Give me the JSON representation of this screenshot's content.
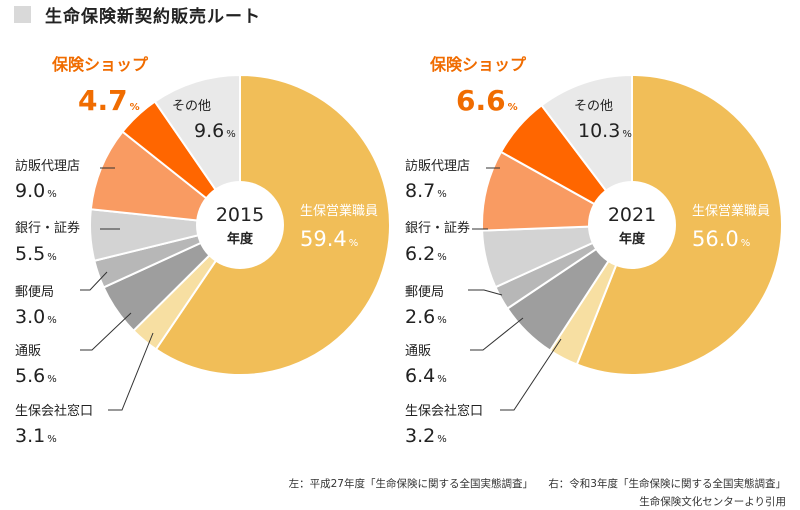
{
  "title": "生命保険新契約販売ルート",
  "colors": {
    "life_staff": "#f1be58",
    "counter": "#f7dfa2",
    "mail_order": "#9e9e9e",
    "post": "#b7b7b7",
    "bank": "#d3d3d3",
    "agency": "#f99b62",
    "shop": "#ff6600",
    "other": "#e9e9e9",
    "accent_text": "#f06c00"
  },
  "chart_data": [
    {
      "type": "pie",
      "center_label": "2015",
      "center_sublabel": "年度",
      "unit": "%",
      "slices": [
        {
          "label": "生保営業職員",
          "value": "59.4",
          "color": "#f1be58"
        },
        {
          "label": "生保会社窓口",
          "value": "3.1",
          "color": "#f7dfa2"
        },
        {
          "label": "通販",
          "value": "5.6",
          "color": "#9e9e9e"
        },
        {
          "label": "郵便局",
          "value": "3.0",
          "color": "#b7b7b7"
        },
        {
          "label": "銀行・証券",
          "value": "5.5",
          "color": "#d3d3d3"
        },
        {
          "label": "訪販代理店",
          "value": "9.0",
          "color": "#f99b62"
        },
        {
          "label": "保険ショップ",
          "value": "4.7",
          "color": "#ff6600"
        },
        {
          "label": "その他",
          "value": "9.6",
          "color": "#e9e9e9"
        }
      ]
    },
    {
      "type": "pie",
      "center_label": "2021",
      "center_sublabel": "年度",
      "unit": "%",
      "slices": [
        {
          "label": "生保営業職員",
          "value": "56.0",
          "color": "#f1be58"
        },
        {
          "label": "生保会社窓口",
          "value": "3.2",
          "color": "#f7dfa2"
        },
        {
          "label": "通販",
          "value": "6.4",
          "color": "#9e9e9e"
        },
        {
          "label": "郵便局",
          "value": "2.6",
          "color": "#b7b7b7"
        },
        {
          "label": "銀行・証券",
          "value": "6.2",
          "color": "#d3d3d3"
        },
        {
          "label": "訪販代理店",
          "value": "8.7",
          "color": "#f99b62"
        },
        {
          "label": "保険ショップ",
          "value": "6.6",
          "color": "#ff6600"
        },
        {
          "label": "その他",
          "value": "10.3",
          "color": "#e9e9e9"
        }
      ]
    }
  ],
  "source": {
    "left": "左：平成27年度「生命保険に関する全国実態調査」",
    "right": "右：令和3年度「生命保険に関する全国実態調査」",
    "citation": "生命保険文化センターより引用"
  }
}
